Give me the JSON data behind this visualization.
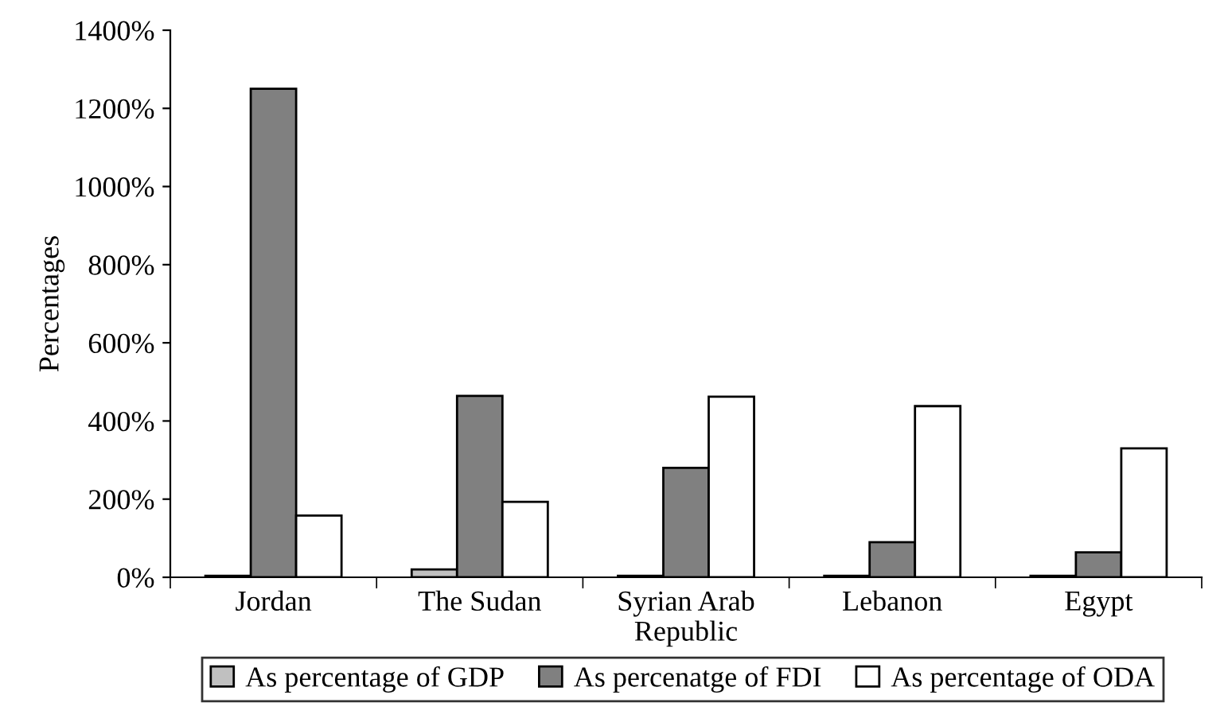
{
  "chart_data": {
    "type": "bar",
    "ylabel": "Percentages",
    "categories": [
      "Jordan",
      "The Sudan",
      "Syrian Arab\nRepublic",
      "Lebanon",
      "Egypt"
    ],
    "series": [
      {
        "name": "As percentage of GDP",
        "color": "#c0c0c0",
        "values": [
          4,
          20,
          4,
          4,
          4
        ]
      },
      {
        "name": "As percenatge of FDI",
        "color": "#808080",
        "values": [
          1250,
          464,
          280,
          90,
          64
        ]
      },
      {
        "name": "As percentage of ODA",
        "color": "#ffffff",
        "values": [
          158,
          193,
          462,
          438,
          330
        ]
      }
    ],
    "ylim": [
      0,
      1400
    ],
    "yticks": [
      {
        "value": 0,
        "label": "0%"
      },
      {
        "value": 200,
        "label": "200%"
      },
      {
        "value": 400,
        "label": "400%"
      },
      {
        "value": 600,
        "label": "600%"
      },
      {
        "value": 800,
        "label": "800%"
      },
      {
        "value": 1000,
        "label": "1000%"
      },
      {
        "value": 1200,
        "label": "1200%"
      },
      {
        "value": 1400,
        "label": "1400%"
      }
    ],
    "grid": false,
    "legend": "bottom"
  }
}
